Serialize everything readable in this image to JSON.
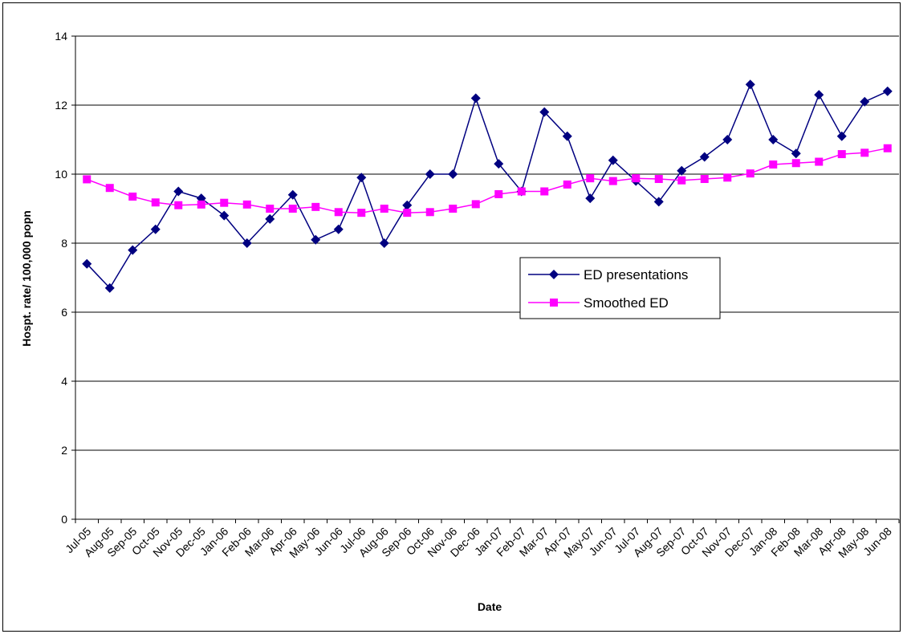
{
  "chart_data": {
    "type": "line",
    "xlabel": "Date",
    "ylabel": "Hospt. rate/ 100,000 popn",
    "ylim": [
      0,
      14
    ],
    "yticks": [
      0,
      2,
      4,
      6,
      8,
      10,
      12,
      14
    ],
    "grid": "horizontal",
    "legend_position": "right-center",
    "categories": [
      "Jul-05",
      "Aug-05",
      "Sep-05",
      "Oct-05",
      "Nov-05",
      "Dec-05",
      "Jan-06",
      "Feb-06",
      "Mar-06",
      "Apr-06",
      "May-06",
      "Jun-06",
      "Jul-06",
      "Aug-06",
      "Sep-06",
      "Oct-06",
      "Nov-06",
      "Dec-06",
      "Jan-07",
      "Feb-07",
      "Mar-07",
      "Apr-07",
      "May-07",
      "Jun-07",
      "Jul-07",
      "Aug-07",
      "Sep-07",
      "Oct-07",
      "Nov-07",
      "Dec-07",
      "Jan-08",
      "Feb-08",
      "Mar-08",
      "Apr-08",
      "May-08",
      "Jun-08"
    ],
    "series": [
      {
        "name": "ED presentations",
        "color": "#000080",
        "marker": "diamond",
        "values": [
          7.4,
          6.7,
          7.8,
          8.4,
          9.5,
          9.3,
          8.8,
          8.0,
          8.7,
          9.4,
          8.1,
          8.4,
          9.9,
          8.0,
          9.1,
          10.0,
          10.0,
          12.2,
          10.3,
          9.5,
          11.8,
          11.1,
          9.3,
          10.4,
          9.8,
          9.2,
          10.1,
          10.5,
          11.0,
          12.6,
          11.0,
          10.6,
          12.3,
          11.1,
          12.1,
          12.4
        ]
      },
      {
        "name": "Smoothed ED",
        "color": "#ff00ff",
        "marker": "square",
        "values": [
          9.85,
          9.6,
          9.35,
          9.18,
          9.1,
          9.12,
          9.17,
          9.12,
          9.0,
          9.0,
          9.05,
          8.9,
          8.88,
          9.0,
          8.88,
          8.9,
          9.0,
          9.13,
          9.42,
          9.5,
          9.5,
          9.7,
          9.88,
          9.8,
          9.88,
          9.86,
          9.82,
          9.86,
          9.9,
          10.02,
          10.28,
          10.32,
          10.36,
          10.58,
          10.62,
          10.75
        ]
      }
    ]
  }
}
